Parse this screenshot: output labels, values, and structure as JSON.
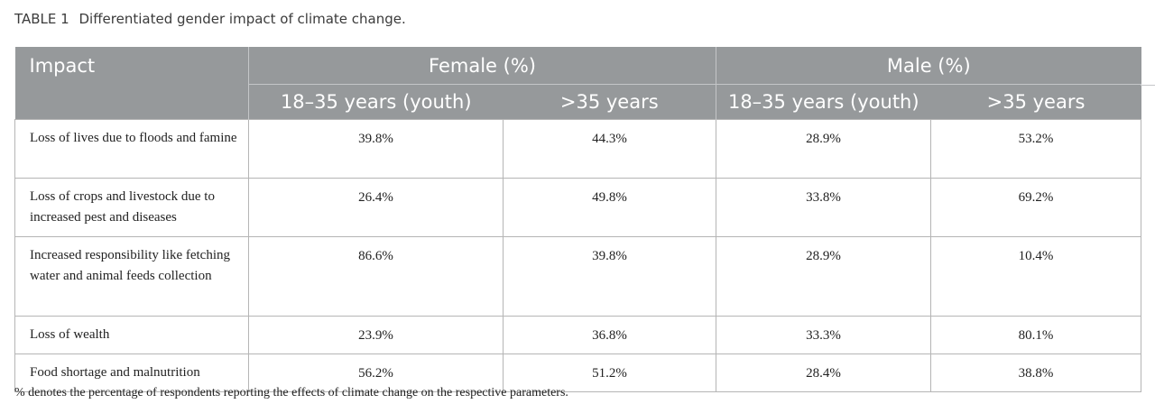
{
  "caption": {
    "label": "TABLE 1",
    "title": "Differentiated gender impact of climate change."
  },
  "table": {
    "header": {
      "impact": "Impact",
      "groups": [
        "Female (%)",
        "Male (%)"
      ],
      "subgroups": [
        "18–35 years (youth)",
        ">35 years",
        "18–35 years (youth)",
        ">35 years"
      ]
    },
    "rows": [
      {
        "impact": "Loss of lives due to floods and famine",
        "values": [
          "39.8%",
          "44.3%",
          "28.9%",
          "53.2%"
        ]
      },
      {
        "impact": "Loss of crops and livestock due to increased pest and diseases",
        "values": [
          "26.4%",
          "49.8%",
          "33.8%",
          "69.2%"
        ]
      },
      {
        "impact": "Increased responsibility like fetching water and animal feeds collection",
        "values": [
          "86.6%",
          "39.8%",
          "28.9%",
          "10.4%"
        ]
      },
      {
        "impact": "Loss of wealth",
        "values": [
          "23.9%",
          "36.8%",
          "33.3%",
          "80.1%"
        ]
      },
      {
        "impact": "Food shortage and malnutrition",
        "values": [
          "56.2%",
          "51.2%",
          "28.4%",
          "38.8%"
        ]
      }
    ]
  },
  "footnote": "% denotes the percentage of respondents reporting the effects of climate change on the respective parameters."
}
